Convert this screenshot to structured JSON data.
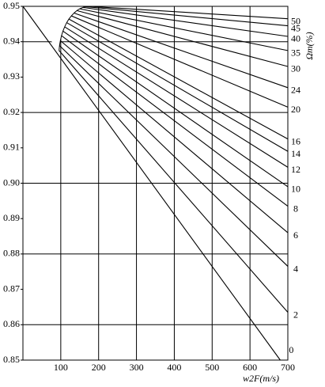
{
  "chart_data": {
    "type": "line",
    "xlabel": "w2F(m/s)",
    "ylabel": "Ωm(%)",
    "annotation": "ψ",
    "xlim": [
      0,
      700
    ],
    "xticks": [
      100,
      200,
      300,
      400,
      500,
      600,
      700
    ],
    "ylim": [
      0.85,
      0.95
    ],
    "yticks": [
      0.85,
      0.86,
      0.87,
      0.88,
      0.89,
      {
        "value": 0.9,
        "label": "0.90"
      },
      0.91,
      0.92,
      0.93,
      0.94,
      0.95
    ],
    "ygrid": [
      0.86,
      0.88,
      0.9,
      0.92,
      0.94
    ],
    "series": [
      {
        "name": "0",
        "color": "#000000",
        "x": [
          0,
          680
        ],
        "values": [
          0.95,
          0.85
        ]
      },
      {
        "name": "2",
        "color": "#000000",
        "x": [
          95.4,
          700
        ],
        "values": [
          0.9375,
          0.8635
        ]
      },
      {
        "name": "4",
        "color": "#000000",
        "x": [
          96.7,
          700
        ],
        "values": [
          0.9389,
          0.8765
        ]
      },
      {
        "name": "6",
        "color": "#000000",
        "x": [
          98.9,
          700
        ],
        "values": [
          0.9403,
          0.886
        ]
      },
      {
        "name": "8",
        "color": "#000000",
        "x": [
          101.9,
          700
        ],
        "values": [
          0.9417,
          0.8935
        ]
      },
      {
        "name": "10",
        "color": "#000000",
        "x": [
          105.7,
          700
        ],
        "values": [
          0.943,
          0.899
        ]
      },
      {
        "name": "12",
        "color": "#000000",
        "x": [
          110.3,
          700
        ],
        "values": [
          0.9442,
          0.9045
        ]
      },
      {
        "name": "14",
        "color": "#000000",
        "x": [
          115.6,
          700
        ],
        "values": [
          0.9454,
          0.909
        ]
      },
      {
        "name": "16",
        "color": "#000000",
        "x": [
          121.5,
          700
        ],
        "values": [
          0.9464,
          0.9125
        ]
      },
      {
        "name": "20",
        "color": "#000000",
        "x": [
          128.0,
          700
        ],
        "values": [
          0.9473,
          0.9215
        ]
      },
      {
        "name": "24",
        "color": "#000000",
        "x": [
          135.0,
          700
        ],
        "values": [
          0.9481,
          0.927
        ]
      },
      {
        "name": "30",
        "color": "#000000",
        "x": [
          142.5,
          700
        ],
        "values": [
          0.9488,
          0.933
        ]
      },
      {
        "name": "35",
        "color": "#000000",
        "x": [
          150.3,
          700
        ],
        "values": [
          0.9493,
          0.9375
        ]
      },
      {
        "name": "40",
        "color": "#000000",
        "x": [
          158.4,
          700
        ],
        "values": [
          0.9497,
          0.9415
        ]
      },
      {
        "name": "45",
        "color": "#000000",
        "x": [
          166.6,
          700
        ],
        "values": [
          0.9499,
          0.9445
        ]
      },
      {
        "name": "50",
        "color": "#000000",
        "x": [
          175.0,
          700
        ],
        "values": [
          0.95,
          0.9465
        ]
      }
    ]
  }
}
